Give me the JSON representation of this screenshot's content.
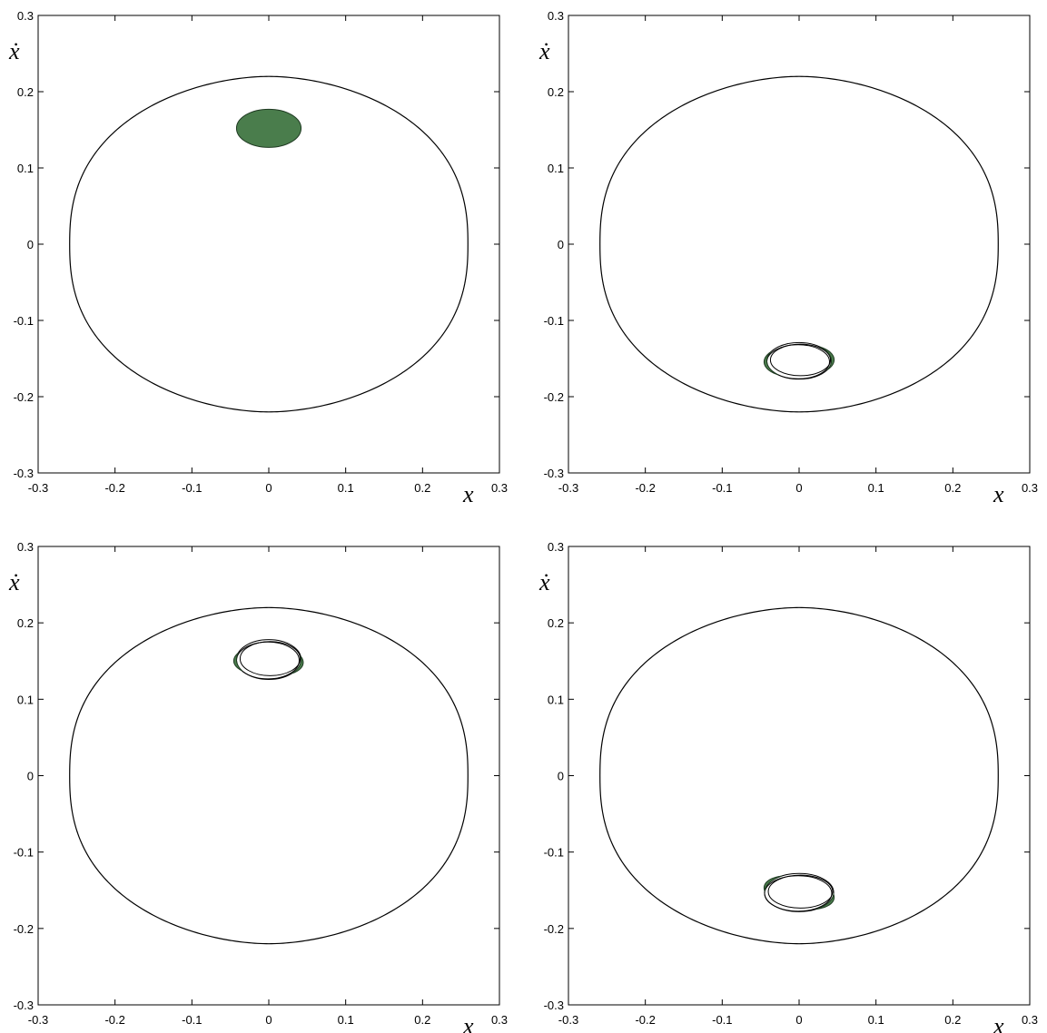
{
  "colors": {
    "blob": "#4a7d4c",
    "line": "#000000",
    "background": "#ffffff"
  },
  "chart_data": [
    {
      "type": "line",
      "panel": "top-left",
      "xlabel": "x",
      "ylabel": "ẋ",
      "xlim": [
        -0.3,
        0.3
      ],
      "ylim": [
        -0.3,
        0.3
      ],
      "xticks": [
        -0.3,
        -0.2,
        -0.1,
        0,
        0.1,
        0.2,
        0.3
      ],
      "yticks": [
        -0.3,
        -0.2,
        -0.1,
        0,
        0.1,
        0.2,
        0.3
      ],
      "grid": false,
      "separatrix": {
        "x_half_width": 0.259,
        "y_top": 0.22,
        "y_bottom": -0.22
      },
      "region": {
        "shape": "filled-ellipse",
        "center": [
          0.0,
          0.152
        ],
        "rx": 0.042,
        "ry": 0.025
      }
    },
    {
      "type": "line",
      "panel": "top-right",
      "xlabel": "x",
      "ylabel": "ẋ",
      "xlim": [
        -0.3,
        0.3
      ],
      "ylim": [
        -0.3,
        0.3
      ],
      "xticks": [
        -0.3,
        -0.2,
        -0.1,
        0,
        0.1,
        0.2,
        0.3
      ],
      "yticks": [
        -0.3,
        -0.2,
        -0.1,
        0,
        0.1,
        0.2,
        0.3
      ],
      "grid": false,
      "separatrix": {
        "x_half_width": 0.259,
        "y_top": 0.22,
        "y_bottom": -0.22
      },
      "region": {
        "shape": "filamented-ring",
        "center": [
          0.0,
          -0.153
        ],
        "rx": 0.042,
        "ry": 0.024,
        "arms": [
          {
            "from_deg": 150,
            "to_deg": 230
          },
          {
            "from_deg": -30,
            "to_deg": 50
          }
        ]
      }
    },
    {
      "type": "line",
      "panel": "bottom-left",
      "xlabel": "x",
      "ylabel": "ẋ",
      "xlim": [
        -0.3,
        0.3
      ],
      "ylim": [
        -0.3,
        0.3
      ],
      "xticks": [
        -0.3,
        -0.2,
        -0.1,
        0,
        0.1,
        0.2,
        0.3
      ],
      "yticks": [
        -0.3,
        -0.2,
        -0.1,
        0,
        0.1,
        0.2,
        0.3
      ],
      "grid": false,
      "separatrix": {
        "x_half_width": 0.259,
        "y_top": 0.22,
        "y_bottom": -0.22
      },
      "region": {
        "shape": "filamented-ring",
        "center": [
          0.0,
          0.152
        ],
        "rx": 0.042,
        "ry": 0.026,
        "arms": [
          {
            "from_deg": 160,
            "to_deg": 215
          },
          {
            "from_deg": -45,
            "to_deg": 10
          }
        ]
      }
    },
    {
      "type": "line",
      "panel": "bottom-right",
      "xlabel": "x",
      "ylabel": "ẋ",
      "xlim": [
        -0.3,
        0.3
      ],
      "ylim": [
        -0.3,
        0.3
      ],
      "xticks": [
        -0.3,
        -0.2,
        -0.1,
        0,
        0.1,
        0.2,
        0.3
      ],
      "yticks": [
        -0.3,
        -0.2,
        -0.1,
        0,
        0.1,
        0.2,
        0.3
      ],
      "grid": false,
      "separatrix": {
        "x_half_width": 0.259,
        "y_top": 0.22,
        "y_bottom": -0.22
      },
      "region": {
        "shape": "filamented-ring",
        "center": [
          0.0,
          -0.153
        ],
        "rx": 0.045,
        "ry": 0.025,
        "arms": [
          {
            "from_deg": 120,
            "to_deg": 175
          },
          {
            "from_deg": -60,
            "to_deg": -5
          }
        ]
      }
    }
  ]
}
